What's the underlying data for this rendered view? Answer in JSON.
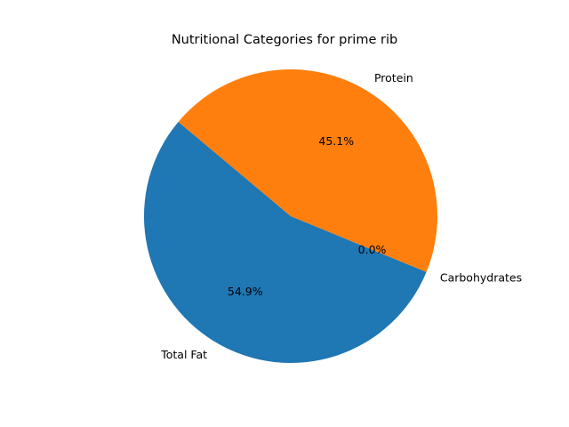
{
  "chart_data": {
    "type": "pie",
    "title": "Nutritional Categories for prime rib",
    "categories": [
      "Total Fat",
      "Carbohydrates",
      "Protein"
    ],
    "values": [
      54.9,
      0.0,
      45.1
    ],
    "percent_labels": [
      "54.9%",
      "0.0%",
      "45.1%"
    ],
    "colors": [
      "#1f77b4",
      "#ff7f0e",
      "#ff7f0e"
    ],
    "start_angle_deg": 140,
    "direction": "counterclockwise",
    "legend": "none"
  }
}
